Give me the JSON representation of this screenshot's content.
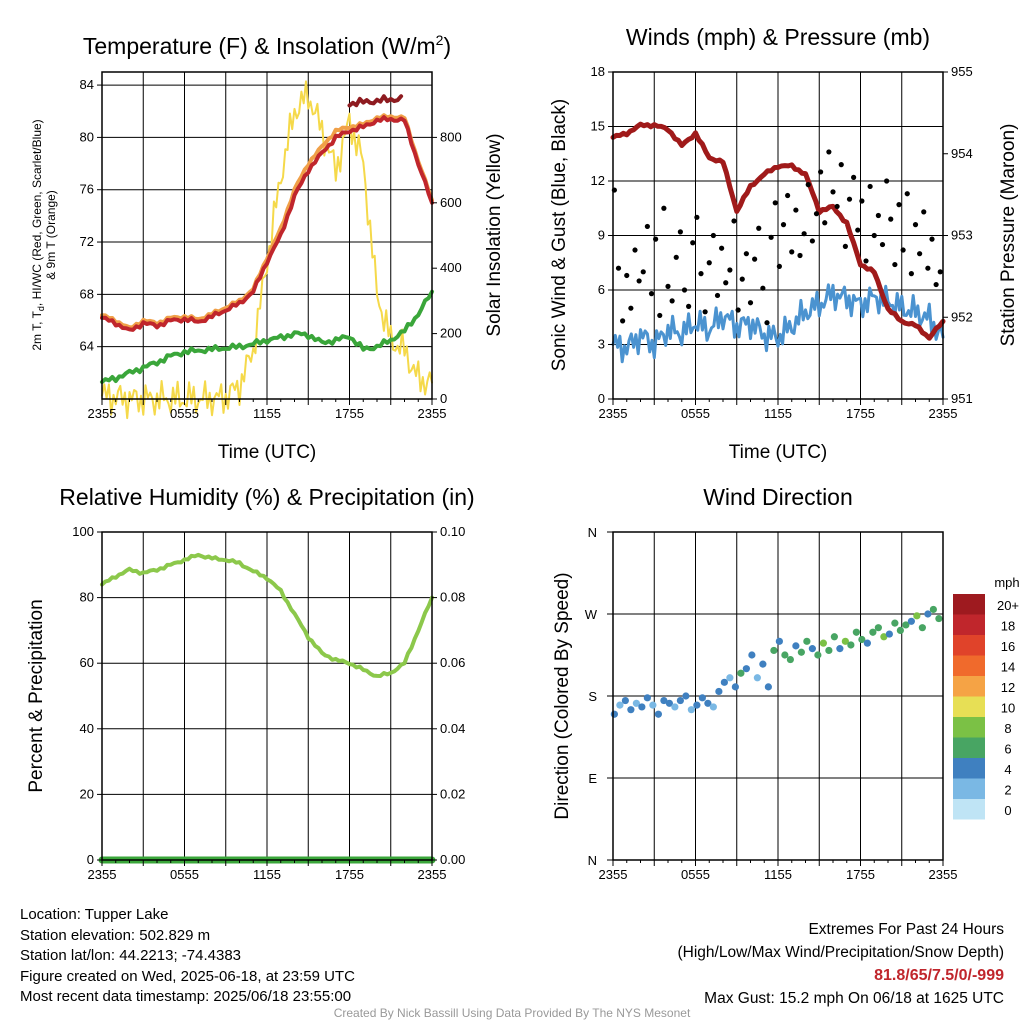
{
  "panels": {
    "temperature": {
      "title_main": "Temperature (F) & Insolation (W/m",
      "title_sup": "2",
      "title_end": ")",
      "ylabel_left_line1": "2m T, T",
      "ylabel_left_sub": "d",
      "ylabel_left_line1b": ", HI/WC (Red, Green, Scarlet/Blue)",
      "ylabel_left_line2": "& 9m T (Orange)",
      "ylabel_right": "Solar Insolation (Yellow)",
      "xlabel": "Time (UTC)"
    },
    "winds": {
      "title": "Winds (mph) & Pressure (mb)",
      "ylabel_left": "Sonic Wind & Gust (Blue, Black)",
      "ylabel_right": "Station Pressure (Maroon)",
      "xlabel": "Time (UTC)"
    },
    "humidity": {
      "title": "Relative Humidity (%) & Precipitation (in)",
      "ylabel_left": "Percent & Precipitation"
    },
    "direction": {
      "title": "Wind Direction",
      "ylabel_left": "Direction (Colored By Speed)",
      "legend_unit": "mph",
      "legend_labels": [
        "20+",
        "18",
        "16",
        "14",
        "12",
        "10",
        "8",
        "6",
        "4",
        "2",
        "0"
      ],
      "legend_colors": [
        "#9e1a1f",
        "#c0262c",
        "#e0432a",
        "#f06a2c",
        "#f5a345",
        "#e7df55",
        "#7bc145",
        "#48a563",
        "#3f80c0",
        "#7ab8e4",
        "#bfe4f5"
      ]
    }
  },
  "x_ticks": [
    "2355",
    "0555",
    "1155",
    "1755",
    "2355"
  ],
  "info": {
    "location": "Location: Tupper Lake",
    "elevation": "Station elevation: 502.829 m",
    "latlon": "Station lat/lon: 44.2213; -74.4383",
    "created": "Figure created on Wed, 2025-06-18, at 23:59 UTC",
    "recent": "Most recent data timestamp: 2025/06/18 23:55:00"
  },
  "extremes": {
    "line1": "Extremes For Past 24 Hours",
    "line2": "(High/Low/Max Wind/Precipitation/Snow Depth)",
    "values": "81.8/65/7.5/0/-999",
    "gust": "Max Gust: 15.2 mph On 06/18 at 1625 UTC"
  },
  "credit": "Created By Nick Bassill Using Data Provided By The NYS Mesonet",
  "chart_data": [
    {
      "type": "line",
      "title": "Temperature (F) & Insolation (W/m2)",
      "xlabel": "Time (UTC)",
      "ylabel": "2m T, Td, HI/WC (Red, Green, Scarlet/Blue) & 9m T (Orange)",
      "y2label": "Solar Insolation (Yellow)",
      "x_hours": [
        0,
        1,
        2,
        3,
        4,
        5,
        6,
        7,
        8,
        9,
        10,
        11,
        12,
        13,
        14,
        15,
        16,
        17,
        18,
        19,
        20,
        21,
        22,
        23,
        24
      ],
      "ylim": [
        60,
        85
      ],
      "yticks": [
        64,
        68,
        72,
        76,
        80,
        84
      ],
      "y2lim": [
        0,
        1000
      ],
      "y2ticks": [
        0,
        200,
        400,
        600,
        800
      ],
      "series": [
        {
          "name": "2m T (Red)",
          "color": "#c0262c",
          "values": [
            66.2,
            65.8,
            65.2,
            65.8,
            65.6,
            66.0,
            66.1,
            65.9,
            66.3,
            66.8,
            67.3,
            68.2,
            70.5,
            72.5,
            75.5,
            77.5,
            78.8,
            80.0,
            80.5,
            80.8,
            81.3,
            81.4,
            81.3,
            78.0,
            75.0
          ]
        },
        {
          "name": "9m T (Orange)",
          "color": "#f0a048",
          "values": [
            66.4,
            66.0,
            65.4,
            66.0,
            65.8,
            66.2,
            66.3,
            66.1,
            66.5,
            67.0,
            67.5,
            68.4,
            70.8,
            73.0,
            76.0,
            78.0,
            79.3,
            80.5,
            80.8,
            81.0,
            81.5,
            81.6,
            81.5,
            78.2,
            75.2
          ]
        },
        {
          "name": "HI/WC (Scarlet)",
          "color": "#8e1b20",
          "values": [
            null,
            null,
            null,
            null,
            null,
            null,
            null,
            null,
            null,
            null,
            null,
            null,
            null,
            null,
            null,
            null,
            null,
            null,
            82.6,
            82.7,
            82.8,
            82.9,
            83.0,
            null,
            null
          ]
        },
        {
          "name": "Td (Green)",
          "color": "#3aa63a",
          "values": [
            61.3,
            61.6,
            62.0,
            62.4,
            62.8,
            63.3,
            63.6,
            63.7,
            63.8,
            63.9,
            64.0,
            64.2,
            64.5,
            64.7,
            65.0,
            64.9,
            64.3,
            64.5,
            64.8,
            63.8,
            64.0,
            64.5,
            65.2,
            66.5,
            68.2
          ]
        },
        {
          "name": "Solar Insolation (Yellow)",
          "axis": "right",
          "color": "#f5d94a",
          "values": [
            10,
            5,
            0,
            0,
            0,
            0,
            0,
            0,
            0,
            5,
            40,
            150,
            420,
            680,
            880,
            930,
            820,
            700,
            850,
            720,
            320,
            180,
            150,
            60,
            50
          ]
        }
      ]
    },
    {
      "type": "line",
      "title": "Winds (mph) & Pressure (mb)",
      "xlabel": "Time (UTC)",
      "ylabel": "Sonic Wind & Gust (Blue, Black)",
      "y2label": "Station Pressure (Maroon)",
      "x_hours": [
        0,
        1,
        2,
        3,
        4,
        5,
        6,
        7,
        8,
        9,
        10,
        11,
        12,
        13,
        14,
        15,
        16,
        17,
        18,
        19,
        20,
        21,
        22,
        23,
        24
      ],
      "ylim": [
        0,
        18
      ],
      "yticks": [
        0,
        3,
        6,
        9,
        12,
        15,
        18
      ],
      "y2lim": [
        951,
        955
      ],
      "y2ticks": [
        951,
        952,
        953,
        954,
        955
      ],
      "series": [
        {
          "name": "Sonic Wind (Blue)",
          "color": "#4b93d0",
          "values": [
            3.0,
            2.8,
            3.5,
            3.0,
            3.8,
            3.6,
            4.2,
            3.8,
            4.6,
            4.0,
            4.2,
            3.5,
            3.4,
            4.0,
            4.8,
            5.2,
            5.8,
            5.5,
            5.2,
            5.6,
            5.4,
            5.0,
            4.8,
            4.4,
            3.4
          ]
        },
        {
          "name": "Station Pressure (Maroon)",
          "axis": "right",
          "color": "#a01a1a",
          "values": [
            954.2,
            954.25,
            954.35,
            954.35,
            954.3,
            954.1,
            954.25,
            953.95,
            953.9,
            953.3,
            953.6,
            953.75,
            953.85,
            953.85,
            953.75,
            953.3,
            953.35,
            953.15,
            952.65,
            952.55,
            952.1,
            951.95,
            951.9,
            951.75,
            951.95
          ]
        },
        {
          "name": "Gust (Black)",
          "type": "scatter",
          "color": "#000000",
          "x": [
            0.1,
            0.4,
            0.7,
            1.0,
            1.3,
            1.6,
            1.9,
            2.2,
            2.5,
            2.8,
            3.1,
            3.4,
            3.7,
            4.0,
            4.3,
            4.6,
            4.9,
            5.2,
            5.5,
            5.8,
            6.1,
            6.4,
            6.7,
            7.0,
            7.3,
            7.6,
            7.9,
            8.2,
            8.5,
            8.8,
            9.1,
            9.4,
            9.7,
            10.0,
            10.3,
            10.6,
            10.9,
            11.2,
            11.5,
            11.8,
            12.1,
            12.4,
            12.7,
            13.0,
            13.3,
            13.6,
            13.9,
            14.2,
            14.5,
            14.8,
            15.1,
            15.4,
            15.7,
            16.0,
            16.3,
            16.6,
            16.9,
            17.2,
            17.5,
            17.8,
            18.1,
            18.4,
            18.7,
            19.0,
            19.3,
            19.6,
            19.9,
            20.2,
            20.5,
            20.8,
            21.1,
            21.4,
            21.7,
            22.0,
            22.3,
            22.6,
            22.9,
            23.2,
            23.5,
            23.8
          ],
          "values": [
            11.5,
            7.2,
            4.3,
            6.8,
            5.0,
            8.2,
            6.5,
            7.0,
            9.5,
            5.8,
            8.8,
            4.6,
            10.5,
            6.2,
            5.4,
            7.8,
            9.2,
            6.0,
            5.1,
            8.6,
            10.0,
            6.9,
            4.8,
            7.5,
            9.0,
            5.7,
            8.3,
            6.4,
            7.1,
            9.8,
            4.9,
            6.6,
            8.0,
            5.3,
            7.7,
            9.4,
            6.1,
            4.2,
            8.9,
            10.8,
            7.3,
            9.6,
            11.2,
            8.1,
            10.4,
            7.9,
            9.1,
            11.8,
            8.7,
            10.2,
            12.5,
            9.7,
            13.6,
            11.4,
            10.6,
            12.9,
            8.4,
            11.0,
            12.2,
            9.3,
            10.9,
            7.6,
            11.7,
            9.0,
            10.1,
            8.5,
            12.0,
            9.9,
            7.4,
            10.7,
            8.2,
            11.3,
            6.9,
            9.6,
            8.0,
            10.3,
            7.2,
            8.8,
            6.3,
            7.0
          ]
        }
      ]
    },
    {
      "type": "line",
      "title": "Relative Humidity (%) & Precipitation (in)",
      "ylabel": "Percent & Precipitation",
      "x_hours": [
        0,
        1,
        2,
        3,
        4,
        5,
        6,
        7,
        8,
        9,
        10,
        11,
        12,
        13,
        14,
        15,
        16,
        17,
        18,
        19,
        20,
        21,
        22,
        23,
        24
      ],
      "ylim": [
        0,
        100
      ],
      "yticks": [
        0,
        20,
        40,
        60,
        80,
        100
      ],
      "y2lim": [
        0,
        0.1
      ],
      "y2ticks": [
        0.0,
        0.02,
        0.04,
        0.06,
        0.08,
        0.1
      ],
      "series": [
        {
          "name": "Relative Humidity",
          "color": "#8cc84b",
          "values": [
            84,
            86.5,
            88.5,
            87.5,
            88.5,
            90,
            91.5,
            93,
            92,
            91.5,
            90.5,
            88,
            86,
            82,
            75,
            68,
            63,
            61,
            60,
            58,
            56,
            57,
            60,
            70,
            80
          ]
        },
        {
          "name": "Precipitation",
          "axis": "right",
          "color": "#3aa63a",
          "values": [
            0,
            0,
            0,
            0,
            0,
            0,
            0,
            0,
            0,
            0,
            0,
            0,
            0,
            0,
            0,
            0,
            0,
            0,
            0,
            0,
            0,
            0,
            0,
            0,
            0
          ]
        }
      ]
    },
    {
      "type": "scatter",
      "title": "Wind Direction",
      "ylabel": "Direction (Colored By Speed)",
      "yticks": [
        "N",
        "E",
        "S",
        "W",
        "N"
      ],
      "ylim": [
        0,
        360
      ],
      "colorbar_label": "mph",
      "x": [
        0.1,
        0.5,
        0.9,
        1.3,
        1.7,
        2.1,
        2.5,
        2.9,
        3.3,
        3.7,
        4.1,
        4.5,
        4.9,
        5.3,
        5.7,
        6.1,
        6.5,
        6.9,
        7.3,
        7.7,
        8.1,
        8.5,
        8.9,
        9.3,
        9.7,
        10.1,
        10.5,
        10.9,
        11.3,
        11.7,
        12.1,
        12.5,
        12.9,
        13.3,
        13.7,
        14.1,
        14.5,
        14.9,
        15.3,
        15.7,
        16.1,
        16.5,
        16.9,
        17.3,
        17.7,
        18.1,
        18.5,
        18.9,
        19.3,
        19.7,
        20.1,
        20.5,
        20.9,
        21.3,
        21.7,
        22.1,
        22.5,
        22.9,
        23.3,
        23.7
      ],
      "values": [
        160,
        170,
        175,
        165,
        172,
        168,
        178,
        170,
        160,
        175,
        172,
        168,
        175,
        180,
        165,
        170,
        178,
        172,
        168,
        185,
        195,
        200,
        190,
        205,
        210,
        225,
        200,
        215,
        190,
        230,
        240,
        225,
        220,
        235,
        228,
        240,
        232,
        225,
        238,
        230,
        245,
        232,
        240,
        236,
        250,
        242,
        238,
        250,
        255,
        245,
        248,
        260,
        252,
        258,
        262,
        268,
        255,
        270,
        275,
        265
      ],
      "speed": [
        3,
        2,
        4,
        3,
        2,
        3,
        4,
        2,
        3,
        4,
        3,
        2,
        4,
        3,
        2,
        3,
        4,
        3,
        2,
        4,
        3,
        2,
        4,
        5,
        3,
        4,
        2,
        3,
        4,
        5,
        4,
        6,
        5,
        4,
        6,
        5,
        4,
        6,
        7,
        5,
        6,
        4,
        7,
        5,
        6,
        5,
        4,
        6,
        5,
        7,
        4,
        6,
        5,
        6,
        4,
        7,
        5,
        4,
        6,
        5
      ]
    }
  ]
}
